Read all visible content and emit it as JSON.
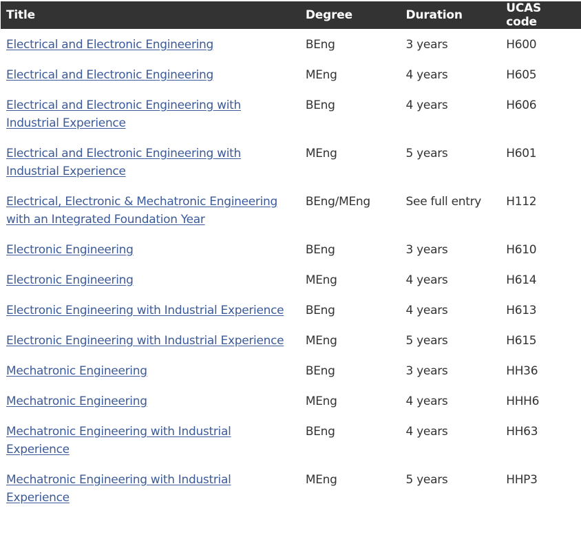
{
  "table": {
    "headers": [
      "Title",
      "Degree",
      "Duration",
      "UCAS code"
    ],
    "rows": [
      {
        "title": "Electrical and Electronic Engineering",
        "degree": "BEng",
        "duration": "3 years",
        "ucas": "H600"
      },
      {
        "title": "Electrical and Electronic Engineering",
        "degree": "MEng",
        "duration": "4 years",
        "ucas": "H605"
      },
      {
        "title": "Electrical and Electronic Engineering with Industrial Experience",
        "degree": "BEng",
        "duration": "4 years",
        "ucas": "H606"
      },
      {
        "title": "Electrical and Electronic Engineering with Industrial Experience",
        "degree": "MEng",
        "duration": "5 years",
        "ucas": "H601"
      },
      {
        "title": "Electrical, Electronic & Mechatronic Engineering with an Integrated Foundation Year",
        "degree": "BEng/MEng",
        "duration": "See full entry",
        "ucas": "H112"
      },
      {
        "title": "Electronic Engineering",
        "degree": "BEng",
        "duration": "3 years",
        "ucas": "H610"
      },
      {
        "title": "Electronic Engineering",
        "degree": "MEng",
        "duration": "4 years",
        "ucas": "H614"
      },
      {
        "title": "Electronic Engineering with Industrial Experience",
        "degree": "BEng",
        "duration": "4 years",
        "ucas": "H613"
      },
      {
        "title": "Electronic Engineering with Industrial Experience",
        "degree": "MEng",
        "duration": "5 years",
        "ucas": "H615"
      },
      {
        "title": "Mechatronic Engineering",
        "degree": "BEng",
        "duration": "3 years",
        "ucas": "HH36"
      },
      {
        "title": "Mechatronic Engineering",
        "degree": "MEng",
        "duration": "4 years",
        "ucas": "HHH6"
      },
      {
        "title": "Mechatronic Engineering with Industrial Experience",
        "degree": "BEng",
        "duration": "4 years",
        "ucas": "HH63"
      },
      {
        "title": "Mechatronic Engineering with Industrial Experience",
        "degree": "MEng",
        "duration": "5 years",
        "ucas": "HHP3"
      }
    ]
  },
  "colors": {
    "header_bg": "#333333",
    "header_text": "#ffffff",
    "link": "#3b5a9a",
    "body_text": "#333333"
  }
}
